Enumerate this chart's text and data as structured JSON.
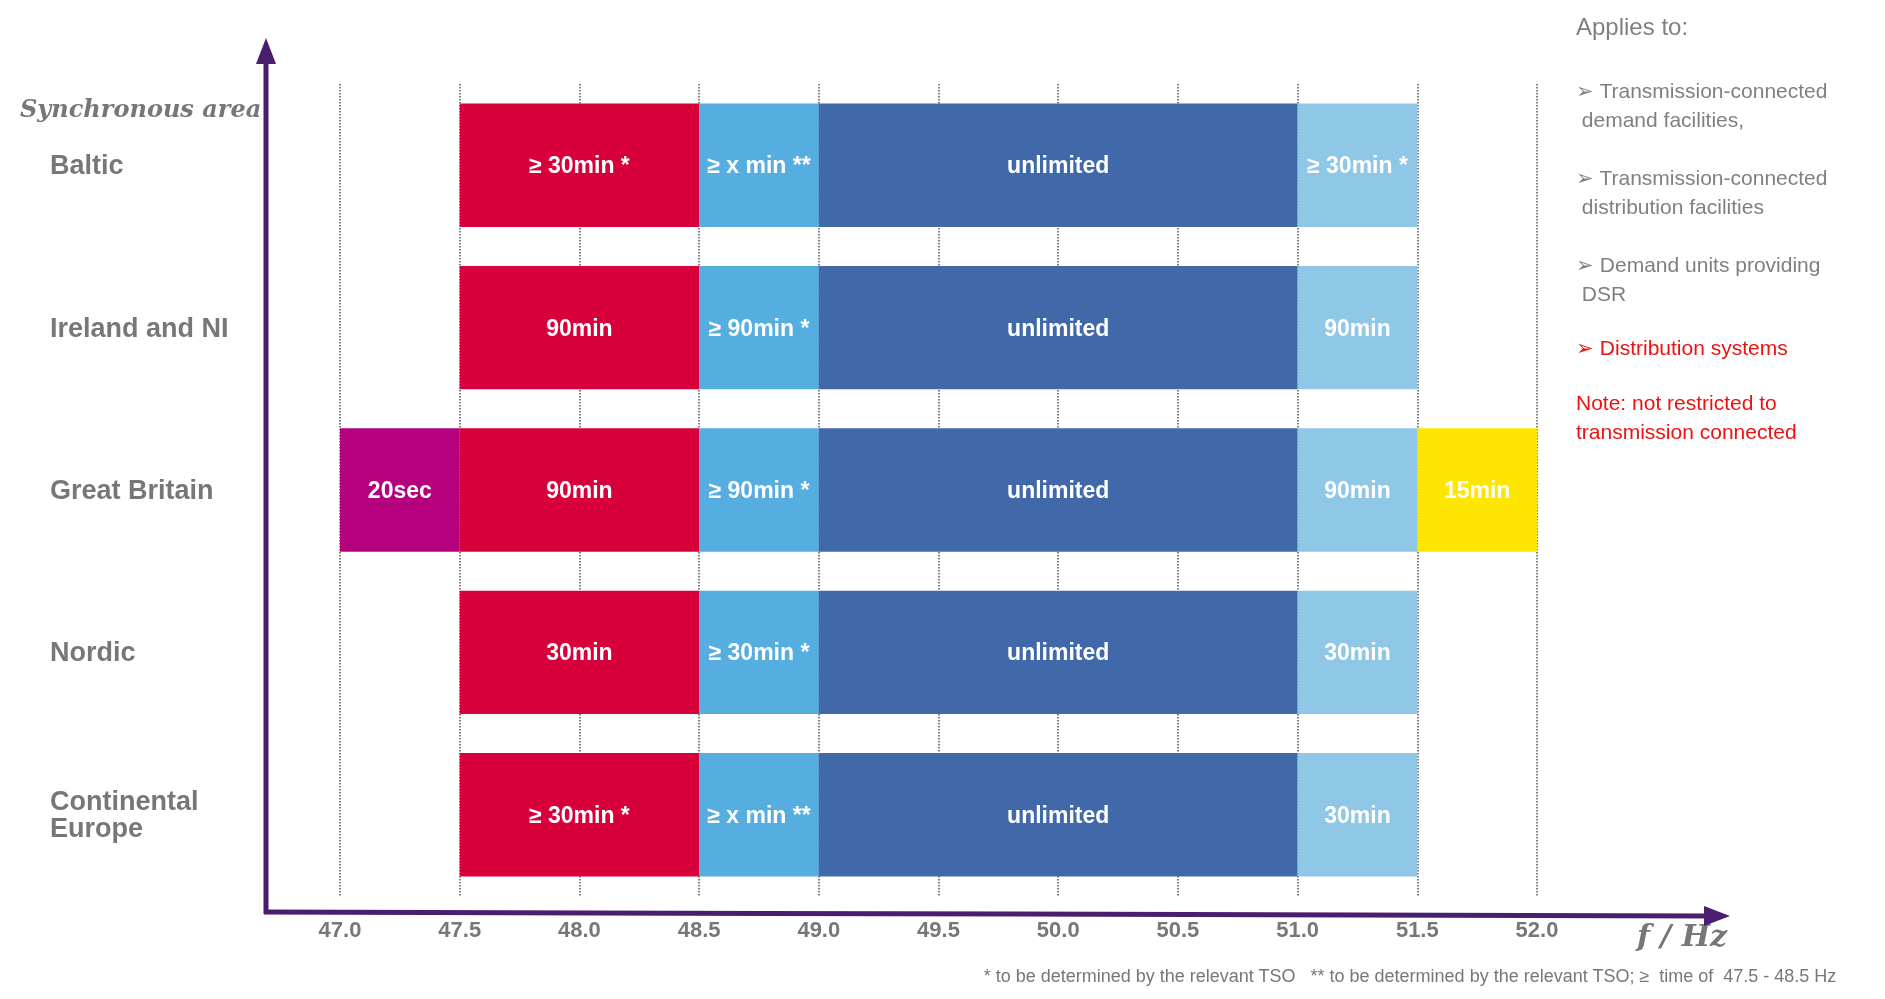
{
  "chart_data": {
    "type": "bar",
    "orientation": "horizontal",
    "xlabel": "f / Hz",
    "ylabel": "Synchronous area",
    "categories": [
      "Baltic",
      "Ireland and NI",
      "Great Britain",
      "Nordic",
      "Continental Europe"
    ],
    "series": [
      {
        "color": "#b5007d",
        "base": [
          null,
          null,
          47.0,
          null,
          null
        ],
        "values": [
          null,
          null,
          0.5,
          null,
          null
        ]
      },
      {
        "color": "#d7003a",
        "base": [
          47.5,
          47.5,
          47.5,
          47.5,
          47.5
        ],
        "values": [
          1.0,
          1.0,
          1.0,
          1.0,
          1.0
        ]
      },
      {
        "color": "#56addf",
        "base": [
          48.5,
          48.5,
          48.5,
          48.5,
          48.5
        ],
        "values": [
          0.5,
          0.5,
          0.5,
          0.5,
          0.5
        ]
      },
      {
        "color": "#4169aa",
        "base": [
          49.0,
          49.0,
          49.0,
          49.0,
          49.0
        ],
        "values": [
          2.0,
          2.0,
          2.0,
          2.0,
          2.0
        ]
      },
      {
        "color": "#8fc7e6",
        "base": [
          51.0,
          51.0,
          51.0,
          51.0,
          51.0
        ],
        "values": [
          0.5,
          0.5,
          0.5,
          0.5,
          0.5
        ]
      },
      {
        "color": "#ffe600",
        "base": [
          null,
          null,
          51.5,
          null,
          null
        ],
        "values": [
          null,
          null,
          0.5,
          null,
          null
        ]
      }
    ],
    "xlim": [
      47.0,
      52.0
    ],
    "xticks": [
      {
        "value": 47.0,
        "label": "47.0"
      },
      {
        "value": 47.5,
        "label": "47.5"
      },
      {
        "value": 48.0,
        "label": "48.0"
      },
      {
        "value": 48.5,
        "label": "48.5"
      },
      {
        "value": 49.0,
        "label": "49.0"
      },
      {
        "value": 49.5,
        "label": "49.5"
      },
      {
        "value": 50.0,
        "label": "50.0"
      },
      {
        "value": 50.5,
        "label": "50.5"
      },
      {
        "value": 51.0,
        "label": "51.0"
      },
      {
        "value": 51.5,
        "label": "51.5"
      },
      {
        "value": 52.0,
        "label": "52.0"
      }
    ],
    "grid": "x",
    "annotations": [
      "Applies to:",
      "➢ Transmission-connected demand facilities,",
      "➢ Transmission-connected distribution facilities",
      "➢ Demand units providing DSR",
      "➢ Distribution systems",
      "Note: not restricted to transmission connected",
      "* to be determined by the relevant TSO   ** to be determined by the relevant TSO; ≥  time of  47.5 - 48.5 Hz",
      "≥ 30min *",
      "≥ x min **",
      "unlimited",
      "≥ 30min *",
      "90min",
      "≥ 90min *",
      "unlimited",
      "90min",
      "20sec",
      "90min",
      "≥ 90min *",
      "unlimited",
      "90min",
      "15min",
      "30min",
      "≥ 30min *",
      "unlimited",
      "30min",
      "≥ 30min *",
      "≥ x min **",
      "unlimited",
      "30min"
    ]
  }
}
